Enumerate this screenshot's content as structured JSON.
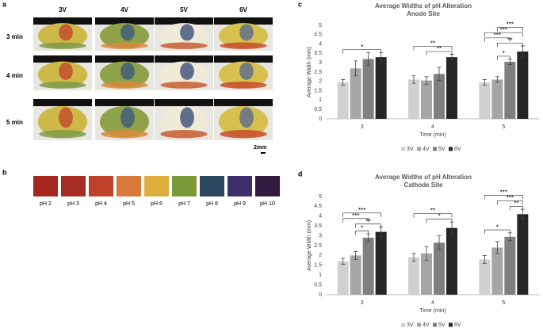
{
  "panel_a": {
    "label": "a",
    "columns": [
      "3V",
      "4V",
      "5V",
      "6V"
    ],
    "rows": [
      "3 min",
      "4 min",
      "5 min"
    ],
    "scale": "2mm"
  },
  "panel_b": {
    "label": "b",
    "swatches": [
      {
        "label": "pH 2",
        "color": "#a3271f"
      },
      {
        "label": "pH 3",
        "color": "#a62d23"
      },
      {
        "label": "pH 4",
        "color": "#c0412a"
      },
      {
        "label": "pH 5",
        "color": "#d8783a"
      },
      {
        "label": "pH 6",
        "color": "#deae3e"
      },
      {
        "label": "pH 7",
        "color": "#7c9a3a"
      },
      {
        "label": "pH 8",
        "color": "#2c4660"
      },
      {
        "label": "pH 9",
        "color": "#3e2f6a"
      },
      {
        "label": "pH 10",
        "color": "#32193f"
      }
    ]
  },
  "chart_data": [
    {
      "type": "bar",
      "panel_label": "c",
      "title": "Average Widths of pH Alteration",
      "subtitle": "Anode Site",
      "y_label": "Average Width (mm)",
      "x_label": "Time (min)",
      "categories": [
        "3",
        "4",
        "5"
      ],
      "series": [
        {
          "name": "3V",
          "color": "#d0d0d0",
          "values": [
            1.95,
            2.1,
            1.95
          ],
          "errors": [
            0.15,
            0.2,
            0.15
          ]
        },
        {
          "name": "4V",
          "color": "#a6a6a6",
          "values": [
            2.7,
            2.05,
            2.1
          ],
          "errors": [
            0.4,
            0.2,
            0.15
          ]
        },
        {
          "name": "5V",
          "color": "#7f7f7f",
          "values": [
            3.2,
            2.4,
            3.05
          ],
          "errors": [
            0.35,
            0.35,
            0.15
          ]
        },
        {
          "name": "6V",
          "color": "#262626",
          "values": [
            3.3,
            3.3,
            3.6
          ],
          "errors": [
            0.25,
            0.15,
            0.3
          ]
        }
      ],
      "annotations": [
        {
          "label": "*",
          "category": 0,
          "from": 0,
          "to": 3
        },
        {
          "label": "**",
          "category": 1,
          "from": 1,
          "to": 3
        },
        {
          "label": "**",
          "category": 1,
          "from": 0,
          "to": 3
        },
        {
          "label": "*",
          "category": 2,
          "from": 1,
          "to": 2
        },
        {
          "label": "**",
          "category": 2,
          "from": 1,
          "to": 3
        },
        {
          "label": "***",
          "category": 2,
          "from": 0,
          "to": 2
        },
        {
          "label": "***",
          "category": 2,
          "from": 0,
          "to": 3
        },
        {
          "label": "***",
          "category": 2,
          "from": 1,
          "to": 3
        }
      ],
      "ylim": [
        0,
        5
      ],
      "yticks": [
        0,
        0.5,
        1,
        1.5,
        2,
        2.5,
        3,
        3.5,
        4,
        4.5,
        5
      ],
      "grid": false
    },
    {
      "type": "bar",
      "panel_label": "d",
      "title": "Average Widths of pH Alteration",
      "subtitle": "Cathode Site",
      "y_label": "Average Width (mm)",
      "x_label": "Time (min)",
      "categories": [
        "3",
        "4",
        "5"
      ],
      "series": [
        {
          "name": "3V",
          "color": "#d0d0d0",
          "values": [
            1.7,
            1.9,
            1.8
          ],
          "errors": [
            0.15,
            0.2,
            0.2
          ]
        },
        {
          "name": "4V",
          "color": "#a6a6a6",
          "values": [
            2.0,
            2.1,
            2.4
          ],
          "errors": [
            0.2,
            0.35,
            0.3
          ]
        },
        {
          "name": "5V",
          "color": "#7f7f7f",
          "values": [
            2.9,
            2.65,
            2.95
          ],
          "errors": [
            0.2,
            0.35,
            0.2
          ]
        },
        {
          "name": "6V",
          "color": "#262626",
          "values": [
            3.2,
            3.4,
            4.1
          ],
          "errors": [
            0.25,
            0.3,
            0.25
          ]
        }
      ],
      "annotations": [
        {
          "label": "*",
          "category": 0,
          "from": 1,
          "to": 2
        },
        {
          "label": "**",
          "category": 0,
          "from": 1,
          "to": 3
        },
        {
          "label": "***",
          "category": 0,
          "from": 0,
          "to": 2
        },
        {
          "label": "***",
          "category": 0,
          "from": 0,
          "to": 3
        },
        {
          "label": "*",
          "category": 1,
          "from": 1,
          "to": 3
        },
        {
          "label": "**",
          "category": 1,
          "from": 0,
          "to": 3
        },
        {
          "label": "*",
          "category": 2,
          "from": 0,
          "to": 2
        },
        {
          "label": "**",
          "category": 2,
          "from": 2,
          "to": 3
        },
        {
          "label": "***",
          "category": 2,
          "from": 1,
          "to": 3
        },
        {
          "label": "***",
          "category": 2,
          "from": 0,
          "to": 3
        }
      ],
      "ylim": [
        0,
        5
      ],
      "yticks": [
        0,
        0.5,
        1,
        1.5,
        2,
        2.5,
        3,
        3.5,
        4,
        4.5,
        5
      ],
      "grid": false
    }
  ]
}
